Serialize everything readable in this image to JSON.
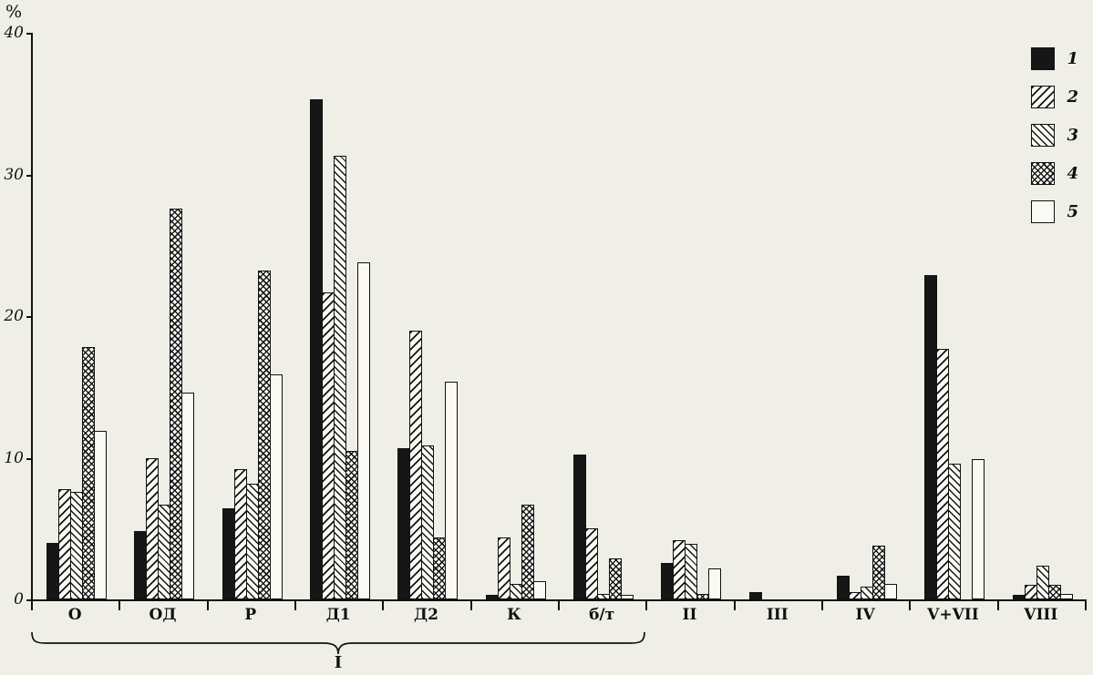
{
  "axis": {
    "unit_label": "%",
    "y_ticks": [
      0,
      10,
      20,
      30,
      40
    ]
  },
  "legend": {
    "items": [
      {
        "label": "1",
        "pattern": "solid"
      },
      {
        "label": "2",
        "pattern": "hatch-forward"
      },
      {
        "label": "3",
        "pattern": "hatch-back"
      },
      {
        "label": "4",
        "pattern": "crosshatch"
      },
      {
        "label": "5",
        "pattern": "plain"
      }
    ]
  },
  "chart_data": {
    "type": "bar",
    "title": "",
    "xlabel": "",
    "ylabel": "%",
    "ylim": [
      0,
      40
    ],
    "grid": false,
    "legend_position": "top-right",
    "categories": [
      "О",
      "ОД",
      "Р",
      "Д1",
      "Д2",
      "К",
      "б/т",
      "II",
      "III",
      "IV",
      "V+VII",
      "VIII"
    ],
    "series": [
      {
        "name": "1",
        "pattern": "solid",
        "values": [
          4.0,
          4.8,
          6.4,
          35.3,
          10.7,
          0.3,
          10.2,
          2.6,
          0.5,
          1.7,
          22.9,
          0.3
        ]
      },
      {
        "name": "2",
        "pattern": "hatch-forward",
        "values": [
          7.8,
          10.0,
          9.2,
          21.7,
          19.0,
          4.4,
          5.0,
          4.2,
          0,
          0.5,
          17.7,
          1.0
        ]
      },
      {
        "name": "3",
        "pattern": "hatch-back",
        "values": [
          7.6,
          6.7,
          8.2,
          31.3,
          10.9,
          1.1,
          0.4,
          3.9,
          0,
          0.9,
          9.6,
          2.4
        ]
      },
      {
        "name": "4",
        "pattern": "crosshatch",
        "values": [
          17.8,
          27.6,
          23.2,
          10.5,
          4.4,
          6.7,
          2.9,
          0.4,
          0,
          3.8,
          0,
          1.0
        ]
      },
      {
        "name": "5",
        "pattern": "plain",
        "values": [
          11.9,
          14.6,
          15.9,
          23.8,
          15.4,
          1.3,
          0.3,
          2.2,
          0,
          1.1,
          9.9,
          0.4
        ]
      }
    ],
    "group_bracket": {
      "label": "I",
      "from_category": "О",
      "to_category": "б/т",
      "span_categories": 7
    }
  },
  "colors": {
    "paper": "#f0efe7",
    "ink": "#111111",
    "bar_white_fill": "#faf9f3"
  }
}
